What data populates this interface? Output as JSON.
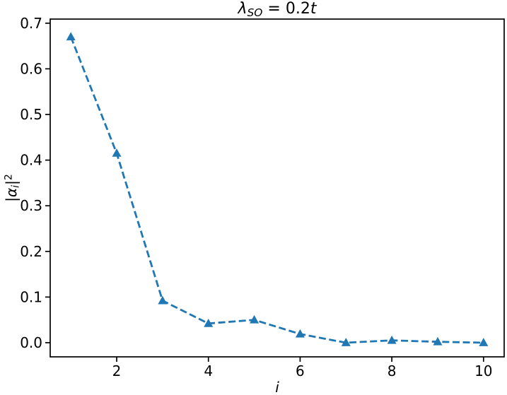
{
  "title_parts": {
    "lambda": "λ",
    "subscript": "SO",
    "equals": " = 0.2",
    "variable": "t"
  },
  "ylabel_parts": {
    "bar_open": "|",
    "alpha": "α",
    "index": "i",
    "bar_close": "|",
    "exponent": "2"
  },
  "xlabel": "i",
  "axis": {
    "xtick_labels": [
      "2",
      "4",
      "6",
      "8",
      "10"
    ],
    "ytick_labels": [
      "0.0",
      "0.1",
      "0.2",
      "0.3",
      "0.4",
      "0.5",
      "0.6",
      "0.7"
    ]
  },
  "style": {
    "line_color": "#1f77b4",
    "axis_color": "#000000",
    "background": "#ffffff"
  },
  "chart_data": {
    "type": "line",
    "title": "λ_SO = 0.2t",
    "xlabel": "i",
    "ylabel": "|α_i|^2",
    "x": [
      1,
      2,
      3,
      4,
      5,
      6,
      7,
      8,
      9,
      10
    ],
    "y": [
      0.67,
      0.415,
      0.092,
      0.042,
      0.05,
      0.019,
      0.0,
      0.005,
      0.002,
      0.0
    ],
    "xlim": [
      0.55,
      10.45
    ],
    "ylim": [
      -0.031,
      0.709
    ],
    "xticks": [
      2,
      4,
      6,
      8,
      10
    ],
    "yticks": [
      0.0,
      0.1,
      0.2,
      0.3,
      0.4,
      0.5,
      0.6,
      0.7
    ],
    "grid": false,
    "legend": null,
    "line_style": "dashed",
    "marker": "triangle-up",
    "color": "#1f77b4"
  }
}
